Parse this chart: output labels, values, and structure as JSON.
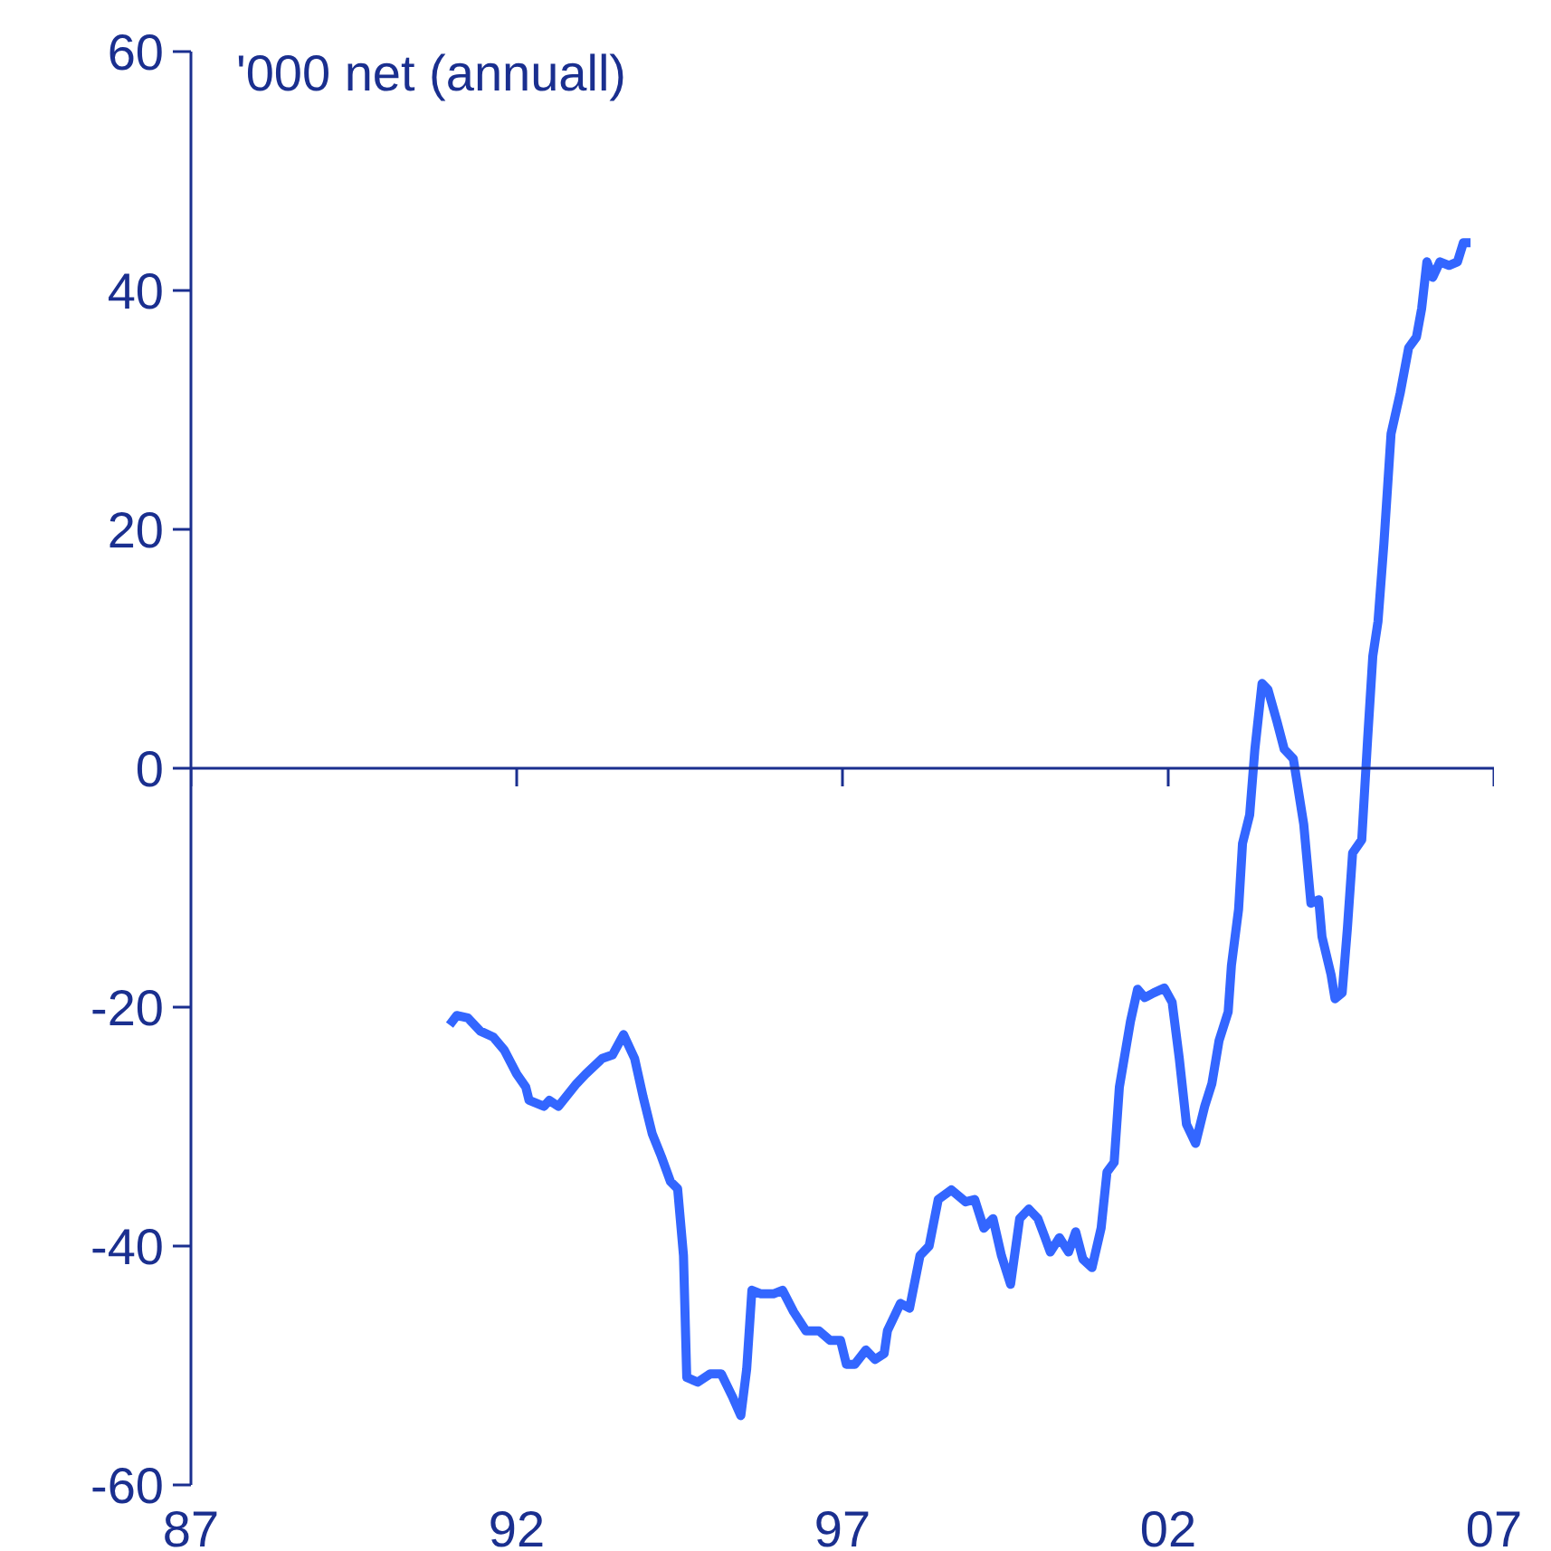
{
  "chart_data": {
    "type": "line",
    "ylabel": "'000 net (annuall)",
    "xlim": [
      1987,
      2007
    ],
    "xticks": [
      {
        "value": 1987,
        "label": "87"
      },
      {
        "value": 1992,
        "label": "92"
      },
      {
        "value": 1997,
        "label": "97"
      },
      {
        "value": 2002,
        "label": "02"
      },
      {
        "value": 2007,
        "label": "07"
      }
    ],
    "ylim": [
      -60,
      60
    ],
    "yticks": [
      -60,
      -40,
      -20,
      0,
      20,
      40,
      60
    ],
    "grid": false,
    "ref_lines": [
      {
        "axis": "y",
        "value": 0,
        "color": "#1a2f8f",
        "line_style": "solid"
      }
    ],
    "marker": "none",
    "line_style": "solid",
    "series": [
      {
        "color": "#3366ff",
        "x": [
          1990.97,
          1991.08,
          1991.25,
          1991.44,
          1991.64,
          1991.81,
          1992.0,
          1992.14,
          1992.19,
          1992.42,
          1992.5,
          1992.64,
          1992.92,
          1993.06,
          1993.31,
          1993.47,
          1993.64,
          1993.81,
          1993.94,
          1994.08,
          1994.22,
          1994.36,
          1994.47,
          1994.56,
          1994.61,
          1994.78,
          1994.97,
          1995.14,
          1995.31,
          1995.44,
          1995.53,
          1995.61,
          1995.75,
          1995.94,
          1996.08,
          1996.25,
          1996.44,
          1996.64,
          1996.81,
          1996.97,
          1997.06,
          1997.19,
          1997.36,
          1997.5,
          1997.64,
          1997.69,
          1997.89,
          1998.03,
          1998.19,
          1998.33,
          1998.47,
          1998.67,
          1998.89,
          1999.03,
          1999.17,
          1999.31,
          1999.44,
          1999.58,
          1999.72,
          1999.86,
          2000.0,
          2000.11,
          2000.19,
          2000.33,
          2000.47,
          2000.58,
          2000.69,
          2000.83,
          2000.97,
          2001.06,
          2001.17,
          2001.25,
          2001.42,
          2001.53,
          2001.64,
          2001.78,
          2001.94,
          2002.06,
          2002.17,
          2002.28,
          2002.42,
          2002.56,
          2002.67,
          2002.78,
          2002.92,
          2002.97,
          2003.08,
          2003.14,
          2003.25,
          2003.33,
          2003.44,
          2003.53,
          2003.67,
          2003.78,
          2003.92,
          2004.08,
          2004.19,
          2004.31,
          2004.36,
          2004.5,
          2004.56,
          2004.67,
          2004.75,
          2004.83,
          2004.97,
          2005.06,
          2005.14,
          2005.22,
          2005.31,
          2005.42,
          2005.56,
          2005.69,
          2005.81,
          2005.89,
          2005.97,
          2006.06,
          2006.17,
          2006.31,
          2006.44,
          2006.53,
          2006.64
        ],
        "values": [
          -21.5,
          -20.7,
          -20.9,
          -22.0,
          -22.5,
          -23.6,
          -25.6,
          -26.7,
          -27.8,
          -28.3,
          -27.8,
          -28.3,
          -26.4,
          -25.6,
          -24.3,
          -24.0,
          -22.3,
          -24.3,
          -27.5,
          -30.6,
          -32.5,
          -34.6,
          -35.2,
          -40.8,
          -51.0,
          -51.4,
          -50.7,
          -50.7,
          -52.6,
          -54.2,
          -50.3,
          -43.7,
          -44.0,
          -44.0,
          -43.7,
          -45.5,
          -47.1,
          -47.1,
          -47.9,
          -47.9,
          -49.9,
          -49.9,
          -48.7,
          -49.5,
          -49.0,
          -47.1,
          -44.8,
          -45.2,
          -40.8,
          -40.0,
          -36.1,
          -35.3,
          -36.3,
          -36.1,
          -38.5,
          -37.7,
          -40.8,
          -43.2,
          -37.7,
          -36.9,
          -37.7,
          -39.3,
          -40.5,
          -39.3,
          -40.5,
          -38.8,
          -41.1,
          -41.8,
          -38.5,
          -33.8,
          -33.0,
          -26.7,
          -21.2,
          -18.5,
          -19.2,
          -18.8,
          -18.4,
          -19.6,
          -24.3,
          -29.8,
          -31.4,
          -28.3,
          -26.4,
          -22.8,
          -20.4,
          -16.5,
          -11.8,
          -6.3,
          -3.9,
          1.6,
          7.1,
          6.6,
          3.9,
          1.6,
          0.8,
          -4.7,
          -11.3,
          -11.0,
          -14.1,
          -17.3,
          -19.3,
          -18.8,
          -13.4,
          -7.1,
          -6.0,
          2.4,
          9.4,
          12.3,
          18.8,
          28.0,
          31.4,
          35.2,
          36.1,
          38.5,
          42.4,
          41.1,
          42.4,
          42.1,
          42.4,
          44.0,
          44.0
        ]
      }
    ]
  }
}
